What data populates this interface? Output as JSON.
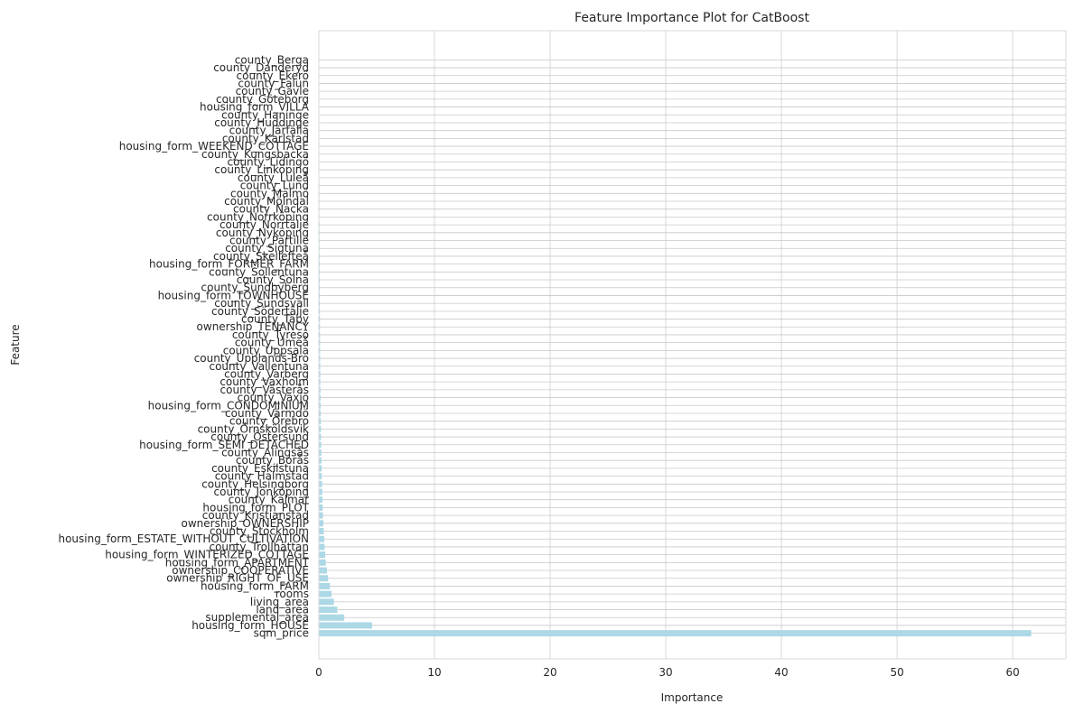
{
  "chart_data": {
    "type": "bar",
    "orientation": "horizontal",
    "title": "Feature Importance Plot for CatBoost",
    "xlabel": "Importance",
    "ylabel": "Feature",
    "xlim": [
      0,
      64.6
    ],
    "xticks": [
      0,
      10,
      20,
      30,
      40,
      50,
      60
    ],
    "grid": true,
    "bar_color": "#ADD8E6",
    "features_top_to_bottom": [
      "county_Berga",
      "county_Danderyd",
      "county_Ekerö",
      "county_Falun",
      "county_Gävle",
      "county_Göteborg",
      "housing_form_VILLA",
      "county_Haninge",
      "county_Huddinge",
      "county_Järfälla",
      "county_Karlstad",
      "housing_form_WEEKEND_COTTAGE",
      "county_Kungsbacka",
      "county_Lidingö",
      "county_Linköping",
      "county_Luleå",
      "county_Lund",
      "county_Malmö",
      "county_Mölndal",
      "county_Nacka",
      "county_Norrköping",
      "county_Norrtälje",
      "county_Nyköping",
      "county_Partille",
      "county_Sigtuna",
      "county_Skellefteå",
      "housing_form_FORMER_FARM",
      "county_Sollentuna",
      "county_Solna",
      "county_Sundbyberg",
      "housing_form_TOWNHOUSE",
      "county_Sundsvall",
      "county_Södertälje",
      "county_Täby",
      "ownership_TENANCY",
      "county_Tyresö",
      "county_Umeå",
      "county_Uppsala",
      "county_Upplands-Bro",
      "county_Vallentuna",
      "county_Varberg",
      "county_Vaxholm",
      "county_Västerås",
      "county_Växjö",
      "housing_form_CONDOMINIUM",
      "county_Värmdö",
      "county_Örebro",
      "county_Örnsköldsvik",
      "county_Östersund",
      "housing_form_SEMI_DETACHED",
      "county_Alingsås",
      "county_Borås",
      "county_Eskilstuna",
      "county_Halmstad",
      "county_Helsingborg",
      "county_Jönköping",
      "county_Kalmar",
      "housing_form_PLOT",
      "county_Kristianstad",
      "ownership_OWNERSHIP",
      "county_Stockholm",
      "housing_form_ESTATE_WITHOUT_CULTIVATION",
      "county_Trollhättan",
      "housing_form_WINTERIZED_COTTAGE",
      "housing_form_APARTMENT",
      "ownership_COOPERATIVE",
      "ownership_RIGHT_OF_USE",
      "housing_form_FARM",
      "rooms",
      "living_area",
      "land_area",
      "supplemental_area",
      "housing_form_HOUSE",
      "sqm_price"
    ],
    "values_top_to_bottom": [
      0.02,
      0.02,
      0.02,
      0.02,
      0.03,
      0.03,
      0.03,
      0.03,
      0.03,
      0.03,
      0.03,
      0.04,
      0.04,
      0.04,
      0.04,
      0.04,
      0.05,
      0.05,
      0.05,
      0.05,
      0.05,
      0.06,
      0.06,
      0.06,
      0.06,
      0.07,
      0.07,
      0.07,
      0.08,
      0.08,
      0.08,
      0.09,
      0.09,
      0.1,
      0.1,
      0.1,
      0.11,
      0.11,
      0.12,
      0.12,
      0.13,
      0.13,
      0.14,
      0.15,
      0.15,
      0.16,
      0.17,
      0.18,
      0.19,
      0.2,
      0.21,
      0.22,
      0.24,
      0.25,
      0.27,
      0.29,
      0.31,
      0.33,
      0.36,
      0.39,
      0.42,
      0.46,
      0.5,
      0.55,
      0.6,
      0.7,
      0.8,
      0.95,
      1.1,
      1.3,
      1.6,
      2.2,
      4.6,
      61.6
    ]
  }
}
